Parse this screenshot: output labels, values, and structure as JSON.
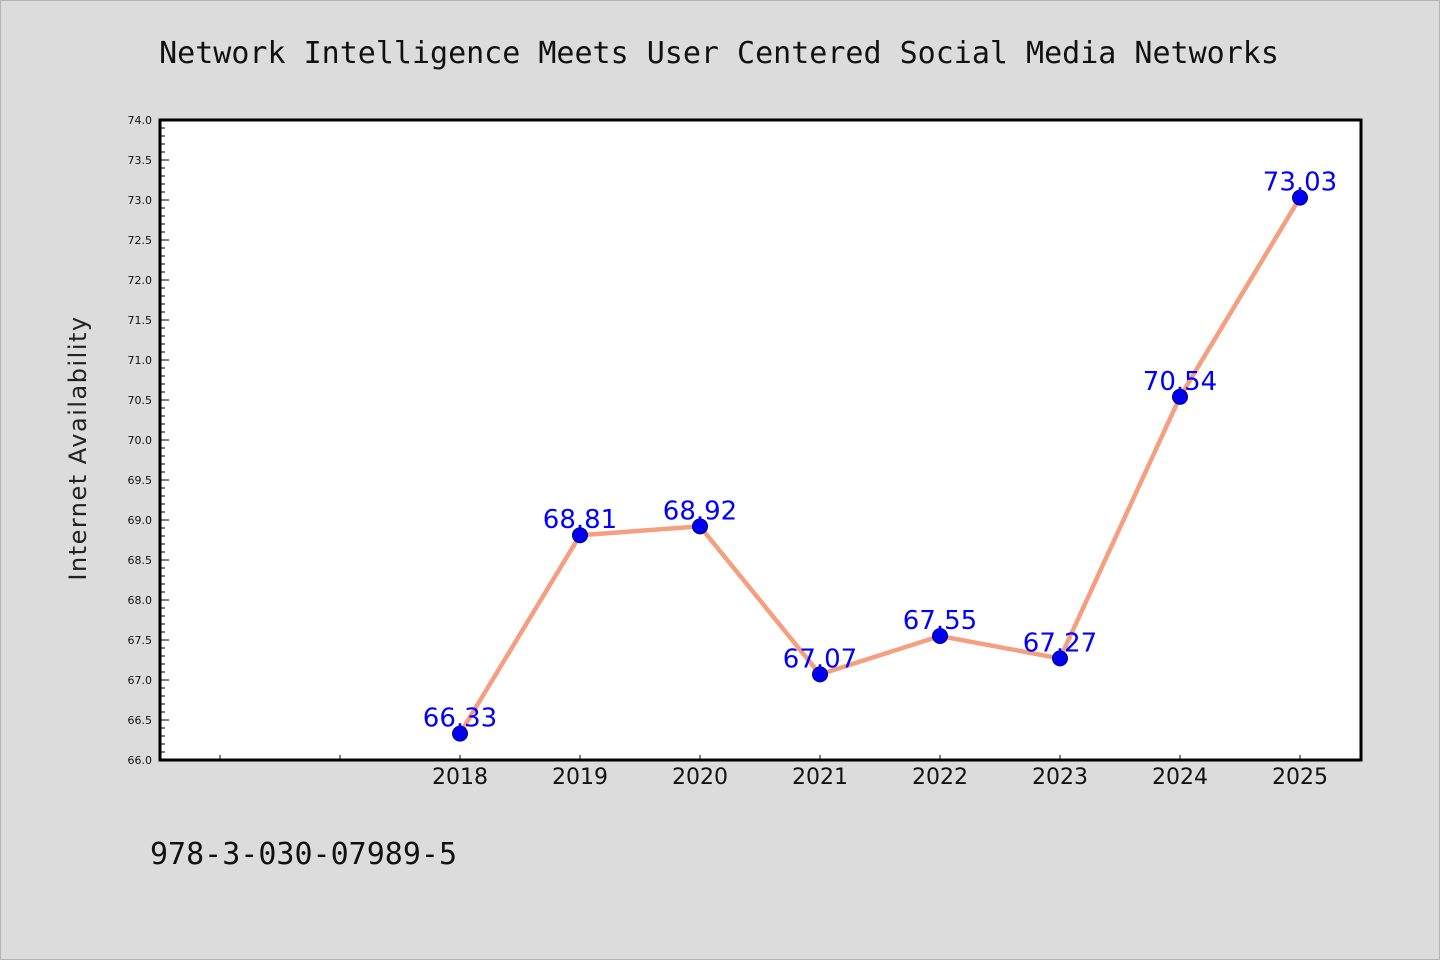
{
  "chart_data": {
    "type": "line",
    "title": "Network Intelligence Meets User Centered Social Media Networks",
    "xlabel": "",
    "ylabel": "Internet Availability",
    "categories": [
      "2018",
      "2019",
      "2020",
      "2021",
      "2022",
      "2023",
      "2024",
      "2025"
    ],
    "series": [
      {
        "values": [
          66.33,
          68.81,
          68.92,
          67.07,
          67.55,
          67.27,
          70.54,
          73.03
        ],
        "data_labels": [
          "66.33",
          "68.81",
          "68.92",
          "67.07",
          "67.55",
          "67.27",
          "70.54",
          "73.03"
        ]
      }
    ],
    "ylim": [
      66.0,
      74.0
    ],
    "yticks": [
      "66.0",
      "66.5",
      "67.0",
      "67.5",
      "68.0",
      "68.5",
      "69.0",
      "69.5",
      "70.0",
      "70.5",
      "71.0",
      "71.5",
      "72.0",
      "72.5",
      "73.0",
      "73.5",
      "74.0"
    ],
    "grid": false,
    "legend": "none",
    "line_color": "#f4a080",
    "marker_color": "#0000ee",
    "label_color": "#0000ff"
  },
  "footer": {
    "isbn": "978-3-030-07989-5"
  }
}
